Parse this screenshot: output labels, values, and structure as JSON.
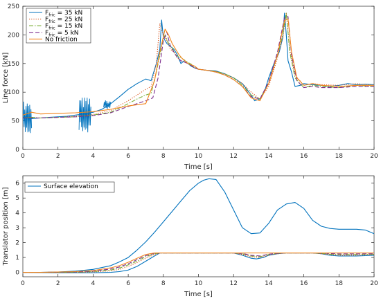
{
  "chart_data": [
    {
      "type": "line",
      "title": "",
      "xlabel": "Time [s]",
      "ylabel": "Line force [kN]",
      "xlim": [
        0,
        20
      ],
      "ylim": [
        0,
        250
      ],
      "xticks": [
        0,
        2,
        4,
        6,
        8,
        10,
        12,
        14,
        16,
        18,
        20
      ],
      "yticks": [
        0,
        50,
        100,
        150,
        200,
        250
      ],
      "grid": false,
      "legend_position": "top-left",
      "legend": [
        {
          "main": "F",
          "sub": "fric",
          "rest": " = 35 kN"
        },
        {
          "main": "F",
          "sub": "fric",
          "rest": " = 25 kN"
        },
        {
          "main": "F",
          "sub": "fric",
          "rest": " = 15 kN"
        },
        {
          "main": "F",
          "sub": "fric",
          "rest": " = 5 kN"
        },
        {
          "main": "No friction",
          "sub": "",
          "rest": ""
        }
      ],
      "series": [
        {
          "color": "#0072BD",
          "dash": "",
          "x": [
            0,
            0.1,
            0.5,
            1,
            1.5,
            2,
            2.5,
            3,
            3.5,
            4,
            4.5,
            5,
            5.5,
            6,
            6.5,
            7,
            7.3,
            7.6,
            7.8,
            7.9,
            8.0,
            8.2,
            8.4,
            8.6,
            8.8,
            9,
            9.2,
            9.4,
            9.6,
            9.8,
            10,
            10.5,
            11,
            11.5,
            12,
            12.5,
            13,
            13.2,
            13.5,
            13.8,
            14,
            14.3,
            14.6,
            14.8,
            14.9,
            15,
            15.1,
            15.3,
            15.5,
            15.8,
            16,
            16.5,
            17,
            17.5,
            18,
            18.5,
            19,
            19.5,
            20
          ],
          "y": [
            55,
            57,
            54,
            55,
            56,
            57,
            58,
            60,
            62,
            65,
            70,
            80,
            92,
            105,
            115,
            123,
            120,
            150,
            175,
            226,
            195,
            185,
            180,
            175,
            165,
            150,
            155,
            150,
            145,
            142,
            140,
            138,
            137,
            132,
            125,
            115,
            95,
            85,
            88,
            105,
            125,
            150,
            170,
            195,
            238,
            200,
            155,
            135,
            110,
            112,
            115,
            113,
            112,
            110,
            112,
            115,
            113,
            114,
            113
          ],
          "noise": [
            [
              0,
              0.5,
              55,
              30,
              2.5
            ],
            [
              3.2,
              3.9,
              60,
              32,
              3.5
            ],
            [
              4.6,
              5.0,
              78,
              8,
              3.0
            ]
          ]
        },
        {
          "color": "#D95319",
          "dash": "1.2,2",
          "x": [
            0,
            0.5,
            1,
            2,
            3,
            4,
            5,
            6,
            6.5,
            7,
            7.3,
            7.6,
            7.8,
            8,
            8.2,
            8.4,
            8.6,
            8.8,
            9,
            9.4,
            9.8,
            10,
            10.5,
            11,
            11.5,
            12,
            12.5,
            13,
            13.5,
            14,
            14.5,
            14.8,
            15,
            15.2,
            15.5,
            16,
            16.5,
            17,
            18,
            19,
            20
          ],
          "y": [
            55,
            56,
            55,
            56,
            58,
            61,
            68,
            85,
            95,
            105,
            110,
            150,
            220,
            200,
            190,
            175,
            170,
            160,
            155,
            150,
            142,
            140,
            138,
            136,
            132,
            125,
            115,
            100,
            88,
            110,
            160,
            195,
            238,
            175,
            130,
            112,
            115,
            113,
            112,
            115,
            112
          ]
        },
        {
          "color": "#77AC30",
          "dash": "6,2,1.5,2",
          "x": [
            0,
            0.5,
            1,
            2,
            3,
            4,
            5,
            6,
            6.5,
            7,
            7.3,
            7.6,
            7.9,
            8.1,
            8.3,
            8.5,
            8.7,
            9,
            9.4,
            9.8,
            10,
            10.5,
            11,
            11.5,
            12,
            12.5,
            13,
            13.5,
            14,
            14.5,
            14.8,
            15,
            15.2,
            15.5,
            16,
            16.5,
            17,
            18,
            19,
            20
          ],
          "y": [
            55,
            56,
            55,
            56,
            57,
            60,
            65,
            80,
            88,
            95,
            98,
            135,
            180,
            200,
            185,
            178,
            165,
            160,
            152,
            145,
            140,
            138,
            136,
            132,
            125,
            112,
            95,
            88,
            115,
            165,
            200,
            238,
            170,
            125,
            108,
            112,
            110,
            108,
            112,
            110
          ]
        },
        {
          "color": "#7E2F8E",
          "dash": "6,3",
          "x": [
            0,
            0.5,
            1,
            2,
            3,
            4,
            5,
            6,
            6.5,
            7,
            7.4,
            7.7,
            8.0,
            8.2,
            8.4,
            8.6,
            8.8,
            9,
            9.4,
            9.8,
            10,
            10.5,
            11,
            11.5,
            12,
            12.5,
            13,
            13.5,
            14,
            14.5,
            14.9,
            15.1,
            15.3,
            15.6,
            16,
            16.5,
            17,
            18,
            19,
            20
          ],
          "y": [
            55,
            55,
            55,
            56,
            57,
            59,
            64,
            75,
            80,
            85,
            90,
            125,
            190,
            205,
            180,
            170,
            160,
            155,
            150,
            143,
            140,
            138,
            135,
            130,
            122,
            110,
            92,
            88,
            118,
            170,
            230,
            232,
            165,
            120,
            108,
            110,
            108,
            108,
            110,
            110
          ]
        },
        {
          "color": "#F2841A",
          "dash": "",
          "x": [
            0,
            0.5,
            1,
            2,
            3,
            4,
            5,
            6,
            6.5,
            7,
            7.5,
            7.8,
            8.1,
            8.3,
            8.5,
            8.7,
            8.9,
            9.1,
            9.4,
            9.8,
            10,
            10.5,
            11,
            11.5,
            12,
            12.5,
            13,
            13.5,
            14,
            14.5,
            14.9,
            15.1,
            15.3,
            15.6,
            16,
            16.5,
            17,
            18,
            19,
            20
          ],
          "y": [
            60,
            65,
            62,
            63,
            64,
            66,
            70,
            76,
            78,
            80,
            120,
            170,
            210,
            200,
            185,
            175,
            165,
            158,
            150,
            145,
            140,
            138,
            135,
            130,
            122,
            110,
            90,
            85,
            115,
            165,
            225,
            228,
            170,
            125,
            112,
            115,
            112,
            110,
            112,
            112
          ]
        }
      ]
    },
    {
      "type": "line",
      "title": "",
      "xlabel": "Time [s]",
      "ylabel": "Translator position [m]",
      "xlim": [
        0,
        20
      ],
      "ylim": [
        -0.3,
        6.5
      ],
      "xticks": [
        0,
        2,
        4,
        6,
        8,
        10,
        12,
        14,
        16,
        18,
        20
      ],
      "yticks": [
        0,
        1,
        2,
        3,
        4,
        5,
        6
      ],
      "grid": false,
      "legend_position": "top-left",
      "legend": [
        {
          "main": "Surface elevation",
          "sub": "",
          "rest": ""
        }
      ],
      "series": [
        {
          "color": "#0072BD",
          "dash": "",
          "x": [
            0,
            1,
            2,
            3,
            4,
            5,
            5.5,
            6,
            6.5,
            7,
            7.5,
            8,
            8.5,
            9,
            9.5,
            10,
            10.3,
            10.6,
            11,
            11.5,
            12,
            12.5,
            13,
            13.5,
            14,
            14.5,
            15,
            15.5,
            16,
            16.5,
            17,
            17.5,
            18,
            18.5,
            19,
            19.5,
            20
          ],
          "y": [
            0,
            0,
            0.02,
            0.08,
            0.2,
            0.45,
            0.7,
            1.0,
            1.5,
            2.05,
            2.7,
            3.4,
            4.1,
            4.8,
            5.5,
            6.0,
            6.2,
            6.3,
            6.25,
            5.4,
            4.2,
            3.0,
            2.6,
            2.65,
            3.3,
            4.2,
            4.6,
            4.7,
            4.3,
            3.5,
            3.1,
            2.95,
            2.9,
            2.9,
            2.9,
            2.85,
            2.6
          ]
        },
        {
          "color": "#0072BD",
          "dash": "",
          "x": [
            0,
            1,
            2,
            3,
            4,
            5,
            5.5,
            6,
            6.5,
            7,
            7.5,
            7.8,
            8,
            9,
            10,
            11,
            12,
            12.5,
            13,
            13.3,
            13.7,
            14,
            14.5,
            15,
            15.5,
            16,
            16.5,
            17,
            17.5,
            18,
            19,
            20
          ],
          "y": [
            0,
            -0.02,
            -0.03,
            -0.03,
            -0.03,
            0,
            0.05,
            0.15,
            0.4,
            0.75,
            1.1,
            1.3,
            1.3,
            1.3,
            1.3,
            1.3,
            1.3,
            1.15,
            0.95,
            0.9,
            1.0,
            1.15,
            1.25,
            1.3,
            1.3,
            1.3,
            1.3,
            1.25,
            1.15,
            1.1,
            1.1,
            1.15
          ]
        },
        {
          "color": "#D95319",
          "dash": "1.2,2",
          "x": [
            0,
            1,
            2,
            3,
            4,
            5,
            5.5,
            6,
            6.5,
            7,
            7.5,
            7.8,
            8,
            9,
            10,
            11,
            12,
            12.5,
            13,
            13.5,
            14,
            14.5,
            15,
            15.5,
            16,
            16.5,
            17,
            17.5,
            18,
            19,
            20
          ],
          "y": [
            0,
            0,
            -0.01,
            0,
            0.02,
            0.1,
            0.2,
            0.4,
            0.65,
            0.95,
            1.2,
            1.3,
            1.3,
            1.3,
            1.3,
            1.3,
            1.3,
            1.2,
            1.05,
            1.0,
            1.15,
            1.25,
            1.3,
            1.3,
            1.3,
            1.3,
            1.25,
            1.2,
            1.15,
            1.15,
            1.2
          ]
        },
        {
          "color": "#77AC30",
          "dash": "6,2,1.5,2",
          "x": [
            0,
            1,
            2,
            3,
            4,
            5,
            5.5,
            6,
            6.5,
            7,
            7.5,
            7.8,
            8,
            9,
            10,
            11,
            12,
            12.5,
            13,
            13.5,
            14,
            14.5,
            15,
            15.5,
            16,
            16.5,
            17,
            17.5,
            18,
            19,
            20
          ],
          "y": [
            0,
            0,
            0,
            0.01,
            0.05,
            0.15,
            0.28,
            0.5,
            0.75,
            1.05,
            1.25,
            1.3,
            1.3,
            1.3,
            1.3,
            1.3,
            1.3,
            1.25,
            1.1,
            1.05,
            1.2,
            1.28,
            1.3,
            1.3,
            1.3,
            1.3,
            1.28,
            1.22,
            1.2,
            1.2,
            1.22
          ]
        },
        {
          "color": "#7E2F8E",
          "dash": "6,3",
          "x": [
            0,
            1,
            2,
            3,
            4,
            5,
            5.5,
            6,
            6.5,
            7,
            7.5,
            7.8,
            8,
            9,
            10,
            11,
            12,
            12.5,
            13,
            13.5,
            14,
            14.5,
            15,
            15.5,
            16,
            16.5,
            17,
            17.5,
            18,
            19,
            20
          ],
          "y": [
            0,
            0,
            0.01,
            0.03,
            0.08,
            0.22,
            0.36,
            0.58,
            0.85,
            1.12,
            1.28,
            1.3,
            1.3,
            1.3,
            1.3,
            1.3,
            1.3,
            1.27,
            1.15,
            1.1,
            1.22,
            1.29,
            1.3,
            1.3,
            1.3,
            1.3,
            1.3,
            1.26,
            1.24,
            1.24,
            1.25
          ]
        },
        {
          "color": "#F2841A",
          "dash": "",
          "x": [
            0,
            1,
            2,
            3,
            4,
            5,
            5.5,
            6,
            6.5,
            7,
            7.5,
            7.8,
            8,
            9,
            10,
            11,
            12,
            13,
            14,
            15,
            16,
            17,
            18,
            19,
            20
          ],
          "y": [
            0,
            0,
            0.02,
            0.05,
            0.12,
            0.3,
            0.45,
            0.68,
            0.95,
            1.2,
            1.3,
            1.3,
            1.3,
            1.3,
            1.3,
            1.3,
            1.3,
            1.3,
            1.3,
            1.3,
            1.3,
            1.3,
            1.3,
            1.3,
            1.3
          ]
        }
      ]
    }
  ]
}
